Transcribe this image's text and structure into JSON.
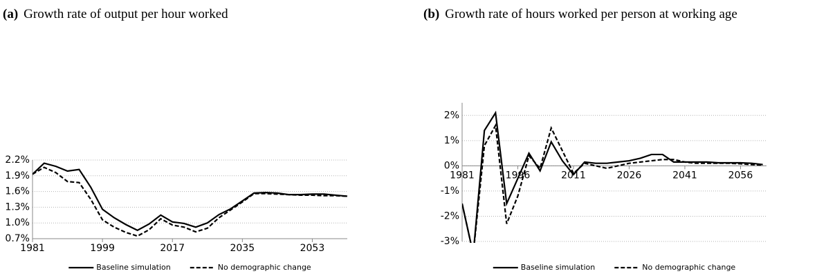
{
  "chart_data": [
    {
      "type": "line",
      "panel_label": "(a)",
      "title": "Growth rate of output per hour worked",
      "x": [
        1981,
        1984,
        1987,
        1990,
        1993,
        1996,
        1999,
        2002,
        2005,
        2008,
        2011,
        2014,
        2017,
        2020,
        2023,
        2026,
        2029,
        2032,
        2035,
        2038,
        2041,
        2044,
        2047,
        2050,
        2053,
        2056,
        2059,
        2062
      ],
      "series": [
        {
          "name": "Baseline simulation",
          "color": "#000000",
          "linestyle": "solid",
          "values": [
            1.93,
            2.14,
            2.08,
            1.99,
            2.02,
            1.68,
            1.26,
            1.1,
            0.97,
            0.86,
            0.98,
            1.15,
            1.02,
            0.99,
            0.92,
            1.0,
            1.16,
            1.27,
            1.42,
            1.57,
            1.58,
            1.57,
            1.54,
            1.54,
            1.55,
            1.55,
            1.53,
            1.51
          ]
        },
        {
          "name": "No demographic change",
          "color": "#000000",
          "linestyle": "dashed",
          "values": [
            1.93,
            2.06,
            1.96,
            1.79,
            1.77,
            1.45,
            1.06,
            0.92,
            0.82,
            0.75,
            0.87,
            1.08,
            0.96,
            0.92,
            0.83,
            0.9,
            1.1,
            1.25,
            1.4,
            1.56,
            1.56,
            1.55,
            1.54,
            1.53,
            1.53,
            1.52,
            1.52,
            1.51
          ]
        }
      ],
      "xlim": [
        1981,
        2062
      ],
      "xticks": [
        1981,
        1999,
        2017,
        2035,
        2053
      ],
      "ylim": [
        0.7,
        2.2
      ],
      "yticks": [
        {
          "value": 0.7,
          "label": "0.7%"
        },
        {
          "value": 1.0,
          "label": "1.0%"
        },
        {
          "value": 1.3,
          "label": "1.3%"
        },
        {
          "value": 1.6,
          "label": "1.6%"
        },
        {
          "value": 1.9,
          "label": "1.9%"
        },
        {
          "value": 2.2,
          "label": "2.2%"
        }
      ],
      "grid": true,
      "legend": "bottom"
    },
    {
      "type": "line",
      "panel_label": "(b)",
      "title": "Growth rate of hours worked per person at working age",
      "x": [
        1981,
        1984,
        1987,
        1990,
        1993,
        1996,
        1999,
        2002,
        2005,
        2008,
        2011,
        2014,
        2017,
        2020,
        2023,
        2026,
        2029,
        2032,
        2035,
        2038,
        2041,
        2044,
        2047,
        2050,
        2053,
        2056,
        2059,
        2062
      ],
      "series": [
        {
          "name": "Baseline simulation",
          "color": "#000000",
          "linestyle": "solid",
          "values": [
            -1.5,
            -3.5,
            1.4,
            2.1,
            -1.5,
            -0.5,
            0.5,
            -0.2,
            0.95,
            0.2,
            -0.35,
            0.15,
            0.1,
            0.1,
            0.15,
            0.2,
            0.3,
            0.45,
            0.45,
            0.15,
            0.15,
            0.15,
            0.15,
            0.12,
            0.12,
            0.12,
            0.1,
            0.05
          ]
        },
        {
          "name": "No demographic change",
          "color": "#000000",
          "linestyle": "dashed",
          "values": [
            -1.5,
            -3.5,
            0.8,
            1.6,
            -2.3,
            -1.2,
            0.4,
            -0.1,
            1.5,
            0.6,
            -0.3,
            0.1,
            0.0,
            -0.1,
            0.0,
            0.1,
            0.15,
            0.2,
            0.25,
            0.25,
            0.15,
            0.1,
            0.1,
            0.1,
            0.1,
            0.08,
            0.05,
            0.03
          ]
        }
      ],
      "xlim": [
        1981,
        2063
      ],
      "xticks": [
        1981,
        1996,
        2011,
        2026,
        2041,
        2056
      ],
      "ylim": [
        -3,
        2.5
      ],
      "yticks": [
        {
          "value": -3,
          "label": "-3%"
        },
        {
          "value": -2,
          "label": "-2%"
        },
        {
          "value": -1,
          "label": "-1%"
        },
        {
          "value": 0,
          "label": "0%"
        },
        {
          "value": 1,
          "label": "1%"
        },
        {
          "value": 2,
          "label": "2%"
        }
      ],
      "grid": true,
      "legend": "bottom"
    }
  ]
}
